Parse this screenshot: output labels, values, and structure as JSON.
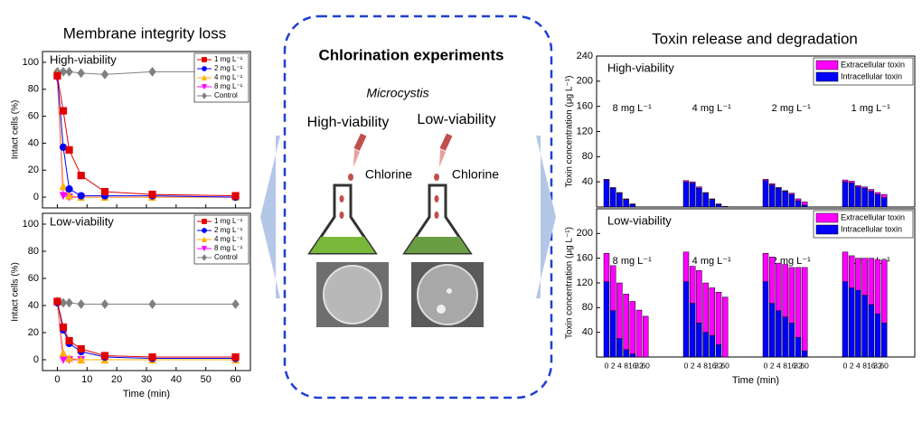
{
  "titles": {
    "left": "Membrane integrity loss",
    "right": "Toxin release and degradation"
  },
  "center": {
    "title": "Chlorination experiments",
    "organism": "Microcystis",
    "high": "High-viability",
    "low": "Low-viability",
    "chlorine": "Chlorine"
  },
  "chart_data": [
    {
      "type": "line",
      "annotation": "High-viability",
      "ylabel": "Intact cells (%)",
      "x": [
        0,
        2,
        4,
        8,
        16,
        32,
        60
      ],
      "xlim": [
        -5,
        65
      ],
      "xticks": [
        0,
        10,
        20,
        30,
        40,
        50,
        60
      ],
      "ylim": [
        -8,
        108
      ],
      "yticks": [
        0,
        20,
        40,
        60,
        80,
        100
      ],
      "legend": "upper right",
      "series": [
        {
          "name": "1 mg L⁻¹",
          "color": "#e00000",
          "marker": "square",
          "values": [
            90,
            64,
            35,
            16,
            4,
            2,
            1
          ]
        },
        {
          "name": "2 mg L⁻¹",
          "color": "#0000ff",
          "marker": "circle",
          "values": [
            90,
            37,
            6,
            1,
            1,
            1,
            0
          ]
        },
        {
          "name": "4 mg L⁻¹",
          "color": "#ffb000",
          "marker": "triangle",
          "values": [
            91,
            8,
            1,
            0,
            0,
            0,
            0
          ]
        },
        {
          "name": "8 mg L⁻¹",
          "color": "#ff00ff",
          "marker": "triangle-down",
          "values": [
            88,
            1,
            0,
            0,
            0,
            0,
            0
          ]
        },
        {
          "name": "Control",
          "color": "#808080",
          "marker": "diamond",
          "values": [
            93,
            93,
            93,
            92,
            91,
            93,
            93
          ]
        }
      ]
    },
    {
      "type": "line",
      "annotation": "Low-viability",
      "ylabel": "Intact cells (%)",
      "xlabel": "Time (min)",
      "x": [
        0,
        2,
        4,
        8,
        16,
        32,
        60
      ],
      "xlim": [
        -5,
        65
      ],
      "xticks": [
        0,
        10,
        20,
        30,
        40,
        50,
        60
      ],
      "ylim": [
        -8,
        108
      ],
      "yticks": [
        0,
        20,
        40,
        60,
        80,
        100
      ],
      "legend": "upper right",
      "series": [
        {
          "name": "1 mg L⁻¹",
          "color": "#e00000",
          "marker": "square",
          "values": [
            43,
            24,
            14,
            8,
            3,
            2,
            2
          ]
        },
        {
          "name": "2 mg L⁻¹",
          "color": "#0000ff",
          "marker": "circle",
          "values": [
            42,
            22,
            12,
            6,
            2,
            1,
            1
          ]
        },
        {
          "name": "4 mg L⁻¹",
          "color": "#ffb000",
          "marker": "triangle",
          "values": [
            43,
            5,
            1,
            0,
            0,
            0,
            0
          ]
        },
        {
          "name": "8 mg L⁻¹",
          "color": "#ff00ff",
          "marker": "triangle-down",
          "values": [
            42,
            0,
            0,
            0,
            0,
            0,
            0
          ]
        },
        {
          "name": "Control",
          "color": "#808080",
          "marker": "diamond",
          "values": [
            43,
            42,
            42,
            41,
            41,
            41,
            41
          ]
        }
      ]
    },
    {
      "type": "stacked-bar",
      "annotation": "High-viability",
      "ylabel": "Toxin concentration (μg L⁻¹)",
      "groups": [
        "8 mg L⁻¹",
        "4 mg L⁻¹",
        "2 mg L⁻¹",
        "1 mg L⁻¹"
      ],
      "ylim": [
        0,
        240
      ],
      "yticks": [
        40,
        80,
        120,
        160,
        200,
        240
      ],
      "legend": "upper right",
      "series": [
        {
          "name": "Extracellular toxin",
          "color": "#ff00ff",
          "values": [
            [
              1,
              1,
              1,
              1,
              1,
              0,
              0
            ],
            [
              2,
              2,
              2,
              1,
              1,
              1,
              0
            ],
            [
              2,
              2,
              1,
              1,
              2,
              3,
              5
            ],
            [
              3,
              3,
              2,
              2,
              3,
              3,
              5
            ]
          ]
        },
        {
          "name": "Intracellular toxin",
          "color": "#0000ff",
          "values": [
            [
              43,
              30,
              22,
              12,
              4,
              0,
              0
            ],
            [
              40,
              38,
              30,
              22,
              12,
              4,
              1
            ],
            [
              42,
              35,
              30,
              25,
              20,
              10,
              3
            ],
            [
              40,
              38,
              32,
              30,
              25,
              20,
              15
            ]
          ]
        }
      ]
    },
    {
      "type": "stacked-bar",
      "annotation": "Low-viability",
      "ylabel": "Toxin concentration (μg L⁻¹)",
      "xlabel": "Time (min)",
      "groups": [
        "8 mg L⁻¹",
        "4 mg L⁻¹",
        "2 mg L⁻¹",
        "1 mg L⁻¹"
      ],
      "categories": [
        "0",
        "2",
        "4",
        "8",
        "16",
        "32",
        "60"
      ],
      "ylim": [
        0,
        240
      ],
      "yticks": [
        40,
        80,
        120,
        160,
        200
      ],
      "legend": "upper right",
      "series": [
        {
          "name": "Extracellular toxin",
          "color": "#ff00ff",
          "values": [
            [
              46,
              73,
              90,
              90,
              85,
              76,
              66
            ],
            [
              48,
              60,
              85,
              80,
              77,
              85,
              97
            ],
            [
              46,
              75,
              77,
              85,
              90,
              113,
              135
            ],
            [
              48,
              52,
              52,
              60,
              75,
              88,
              102
            ]
          ]
        },
        {
          "name": "Intracellular toxin",
          "color": "#0000ff",
          "values": [
            [
              122,
              75,
              30,
              12,
              5,
              0,
              0
            ],
            [
              122,
              87,
              55,
              40,
              35,
              20,
              0
            ],
            [
              122,
              87,
              75,
              65,
              55,
              32,
              10
            ],
            [
              122,
              112,
              108,
              100,
              85,
              70,
              55
            ]
          ]
        }
      ]
    }
  ]
}
